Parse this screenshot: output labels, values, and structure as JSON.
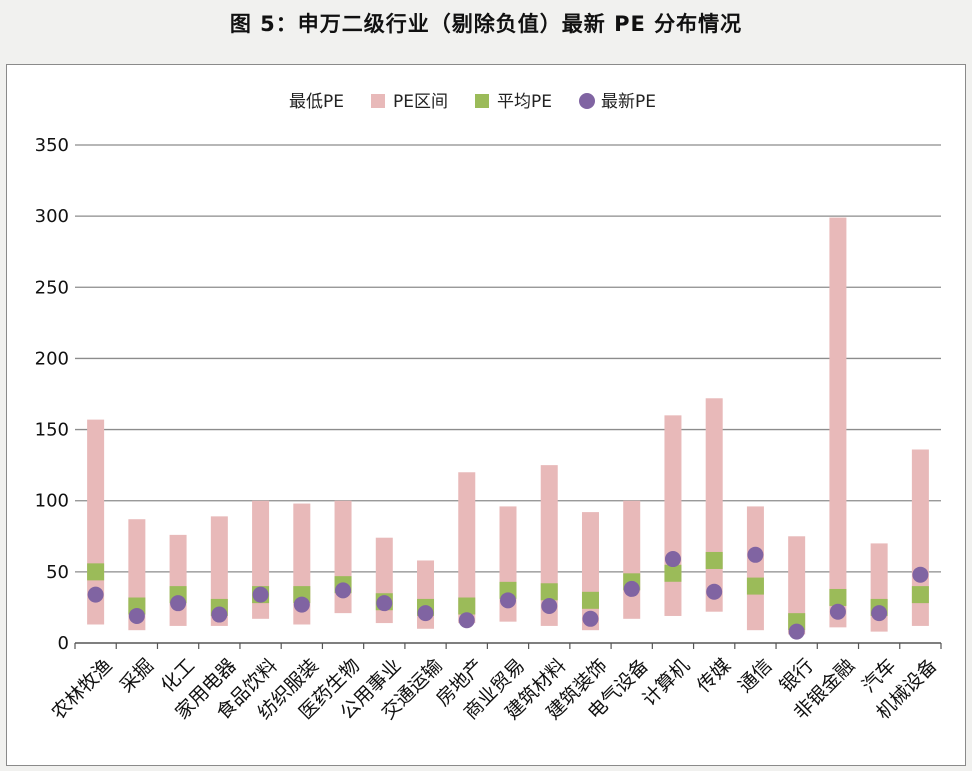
{
  "figure_title": "图 5：申万二级行业（剔除负值）最新 PE 分布情况",
  "colors": {
    "range": "#e8b9b9",
    "average": "#9bbb59",
    "latest": "#8064a2",
    "grid": "#8c8c8c"
  },
  "legend": {
    "items": [
      {
        "label": "最低PE",
        "marker": "none"
      },
      {
        "label": "PE区间",
        "marker": "range"
      },
      {
        "label": "平均PE",
        "marker": "average"
      },
      {
        "label": "最新PE",
        "marker": "latest"
      }
    ]
  },
  "chart_data": {
    "type": "bar",
    "title": "",
    "xlabel": "",
    "ylabel": "",
    "ylim": [
      0,
      350
    ],
    "yticks": [
      0,
      50,
      100,
      150,
      200,
      250,
      300,
      350
    ],
    "grid": true,
    "legend_position": "top",
    "categories": [
      "农林牧渔",
      "采掘",
      "化工",
      "家用电器",
      "食品饮料",
      "纺织服装",
      "医药生物",
      "公用事业",
      "交通运输",
      "房地产",
      "商业贸易",
      "建筑材料",
      "建筑装饰",
      "电气设备",
      "计算机",
      "传媒",
      "通信",
      "银行",
      "非银金融",
      "汽车",
      "机械设备"
    ],
    "series": [
      {
        "name": "最低PE",
        "kind": "stack-base",
        "values": [
          13,
          9,
          12,
          12,
          17,
          13,
          21,
          14,
          10,
          14,
          15,
          12,
          9,
          17,
          19,
          22,
          9,
          6,
          11,
          8,
          12
        ]
      },
      {
        "name": "PE区间",
        "kind": "range-max",
        "values": [
          157,
          87,
          76,
          89,
          100,
          98,
          100,
          74,
          58,
          120,
          96,
          125,
          92,
          100,
          160,
          172,
          96,
          75,
          299,
          70,
          136
        ]
      },
      {
        "name": "平均PE",
        "kind": "marker-square",
        "values": [
          50,
          26,
          34,
          25,
          34,
          34,
          41,
          29,
          25,
          26,
          37,
          36,
          30,
          43,
          49,
          58,
          40,
          15,
          32,
          25,
          34
        ]
      },
      {
        "name": "最新PE",
        "kind": "marker-circle",
        "values": [
          34,
          19,
          28,
          20,
          34,
          27,
          37,
          28,
          21,
          16,
          30,
          26,
          17,
          38,
          59,
          36,
          62,
          8,
          22,
          21,
          48
        ]
      }
    ]
  }
}
